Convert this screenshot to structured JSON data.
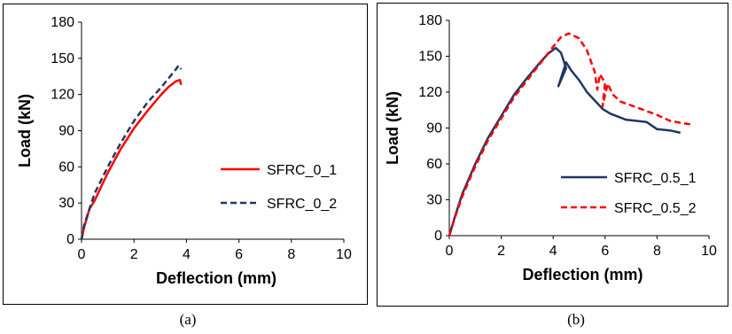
{
  "captions": {
    "a": "(a)",
    "b": "(b)"
  },
  "chart_data": [
    {
      "type": "line",
      "panel": "a",
      "xlabel": "Deflection (mm)",
      "ylabel": "Load (kN)",
      "xlim": [
        0,
        10
      ],
      "ylim": [
        0,
        180
      ],
      "xticks": [
        0,
        2,
        4,
        6,
        8,
        10
      ],
      "yticks": [
        0,
        30,
        60,
        90,
        120,
        150,
        180
      ],
      "grid": false,
      "legend_position": "right",
      "series": [
        {
          "name": "SFRC_0_1",
          "color": "#ff0000",
          "style": "solid",
          "points": [
            [
              0,
              0
            ],
            [
              0.1,
              10
            ],
            [
              0.3,
              25
            ],
            [
              0.5,
              32
            ],
            [
              1.0,
              55
            ],
            [
              1.5,
              75
            ],
            [
              2.0,
              92
            ],
            [
              2.5,
              106
            ],
            [
              3.0,
              119
            ],
            [
              3.3,
              126
            ],
            [
              3.6,
              131
            ],
            [
              3.75,
              132
            ],
            [
              3.8,
              128
            ]
          ]
        },
        {
          "name": "SFRC_0_2",
          "color": "#1f3864",
          "style": "dashed",
          "points": [
            [
              0,
              0
            ],
            [
              0.1,
              12
            ],
            [
              0.3,
              25
            ],
            [
              0.5,
              38
            ],
            [
              1.0,
              60
            ],
            [
              1.5,
              80
            ],
            [
              2.0,
              98
            ],
            [
              2.5,
              113
            ],
            [
              3.0,
              125
            ],
            [
              3.3,
              133
            ],
            [
              3.6,
              141
            ],
            [
              3.7,
              144
            ],
            [
              3.8,
              141
            ]
          ]
        }
      ]
    },
    {
      "type": "line",
      "panel": "b",
      "xlabel": "Deflection (mm)",
      "ylabel": "Load (kN)",
      "xlim": [
        0,
        10
      ],
      "ylim": [
        0,
        180
      ],
      "xticks": [
        0,
        2,
        4,
        6,
        8,
        10
      ],
      "yticks": [
        0,
        30,
        60,
        90,
        120,
        150,
        180
      ],
      "grid": false,
      "legend_position": "bottom-right",
      "series": [
        {
          "name": "SFRC_0.5_1",
          "color": "#1f3864",
          "style": "solid",
          "points": [
            [
              0,
              0
            ],
            [
              0.2,
              15
            ],
            [
              0.5,
              35
            ],
            [
              1.0,
              60
            ],
            [
              1.5,
              82
            ],
            [
              2.0,
              100
            ],
            [
              2.5,
              118
            ],
            [
              3.0,
              132
            ],
            [
              3.5,
              145
            ],
            [
              3.8,
              152
            ],
            [
              4.1,
              157
            ],
            [
              4.3,
              153
            ],
            [
              4.5,
              140
            ],
            [
              4.2,
              125
            ],
            [
              4.5,
              145
            ],
            [
              4.7,
              138
            ],
            [
              5.0,
              130
            ],
            [
              5.3,
              120
            ],
            [
              5.6,
              113
            ],
            [
              5.9,
              106
            ],
            [
              6.2,
              102
            ],
            [
              6.8,
              97
            ],
            [
              7.2,
              96
            ],
            [
              7.6,
              95
            ],
            [
              8.0,
              89
            ],
            [
              8.5,
              88
            ],
            [
              8.9,
              86
            ]
          ]
        },
        {
          "name": "SFRC_0.5_2",
          "color": "#ff0000",
          "style": "dashed",
          "points": [
            [
              0,
              0
            ],
            [
              0.2,
              14
            ],
            [
              0.5,
              33
            ],
            [
              1.0,
              58
            ],
            [
              1.5,
              80
            ],
            [
              2.0,
              98
            ],
            [
              2.5,
              116
            ],
            [
              3.0,
              130
            ],
            [
              3.5,
              144
            ],
            [
              4.0,
              158
            ],
            [
              4.3,
              166
            ],
            [
              4.6,
              169
            ],
            [
              5.0,
              165
            ],
            [
              5.3,
              155
            ],
            [
              5.6,
              137
            ],
            [
              5.7,
              122
            ],
            [
              5.8,
              135
            ],
            [
              6.0,
              128
            ],
            [
              5.9,
              108
            ],
            [
              6.1,
              127
            ],
            [
              6.3,
              118
            ],
            [
              6.6,
              112
            ],
            [
              7.0,
              109
            ],
            [
              7.5,
              105
            ],
            [
              8.0,
              101
            ],
            [
              8.5,
              96
            ],
            [
              9.0,
              94
            ],
            [
              9.3,
              93
            ]
          ]
        }
      ]
    }
  ]
}
